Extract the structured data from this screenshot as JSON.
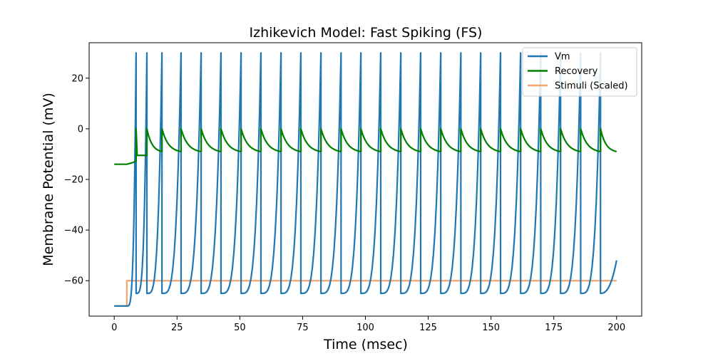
{
  "chart_data": {
    "type": "line",
    "title": "Izhikevich Model: Fast Spiking (FS)",
    "xlabel": "Time (msec)",
    "ylabel": "Membrane Potential (mV)",
    "xlim": [
      -10,
      210
    ],
    "ylim": [
      -74,
      34
    ],
    "xticks": [
      0,
      25,
      50,
      75,
      100,
      125,
      150,
      175,
      200
    ],
    "yticks": [
      -60,
      -40,
      -20,
      0,
      20
    ],
    "grid": false,
    "legend": "top-right",
    "spike_times": [
      8.7,
      13.0,
      19.0,
      26.6,
      34.6,
      42.5,
      50.5,
      58.4,
      66.4,
      74.3,
      82.3,
      90.3,
      98.2,
      106.1,
      114.1,
      122.0,
      130.0,
      138.0,
      145.9,
      153.8,
      161.8,
      169.8,
      177.7,
      185.7,
      193.6
    ],
    "series": [
      {
        "name": "Vm",
        "color": "#1f77b4",
        "peak": 30,
        "reset": -65,
        "rest": -70,
        "final": -52
      },
      {
        "name": "Recovery",
        "color": "#008000",
        "baseline": -14,
        "after_spike": 0,
        "trough": -9
      },
      {
        "name": "Stimuli (Scaled)",
        "color": "#f4a46c",
        "x": [
          0,
          5,
          5,
          200
        ],
        "y": [
          -70,
          -70,
          -60,
          -60
        ]
      }
    ]
  }
}
